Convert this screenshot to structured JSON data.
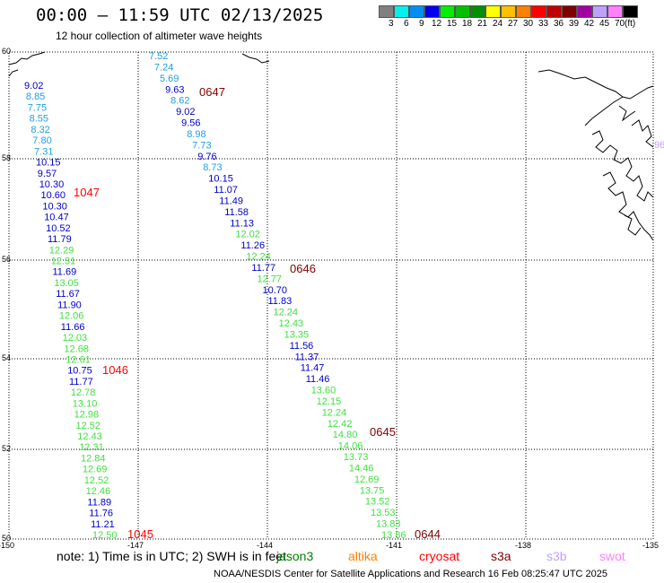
{
  "header": {
    "title": "00:00 — 11:59 UTC 02/13/2025",
    "subtitle": "12 hour collection of altimeter wave heights"
  },
  "scale": {
    "colors": [
      "#808080",
      "#00f0f0",
      "#0090f0",
      "#0000f0",
      "#00f000",
      "#00c000",
      "#009000",
      "#ffff00",
      "#ffc000",
      "#ff8000",
      "#ff0000",
      "#c00000",
      "#800000",
      "#a000a0",
      "#c0a0ff",
      "#ff80ff",
      "#000000"
    ],
    "labels": [
      "3",
      "6",
      "9",
      "12",
      "15",
      "18",
      "21",
      "24",
      "27",
      "30",
      "33",
      "36",
      "39",
      "42",
      "45",
      "70",
      "(ft)"
    ]
  },
  "axes": {
    "lat_labels": [
      "60",
      "58",
      "56",
      "54",
      "52",
      "50"
    ],
    "lon_labels": [
      "-150",
      "-147",
      "-144",
      "-141",
      "-138",
      "-135"
    ]
  },
  "tracks": [
    {
      "points": [
        [
          "9.02",
          "#0000c8"
        ],
        [
          "8.85",
          "#20a0e0"
        ],
        [
          "7.75",
          "#20a0e0"
        ],
        [
          "8.55",
          "#20a0e0"
        ],
        [
          "8.32",
          "#20a0e0"
        ],
        [
          "7.80",
          "#20a0e0"
        ],
        [
          "7.31",
          "#20a0e0"
        ],
        [
          "10.15",
          "#0000c8"
        ],
        [
          "9.57",
          "#0000c8"
        ],
        [
          "10.30",
          "#0000c8"
        ],
        [
          "10.60",
          "#0000c8"
        ],
        [
          "10.30",
          "#0000c8"
        ],
        [
          "10.47",
          "#0000c8"
        ],
        [
          "10.52",
          "#0000c8"
        ],
        [
          "11.79",
          "#0000c8"
        ],
        [
          "12.29",
          "#40e040"
        ],
        [
          "12.31",
          "#40e040"
        ],
        [
          "11.69",
          "#0000c8"
        ],
        [
          "13.05",
          "#40e040"
        ],
        [
          "11.67",
          "#0000c8"
        ],
        [
          "11.90",
          "#0000c8"
        ],
        [
          "12.06",
          "#40e040"
        ],
        [
          "11.66",
          "#0000c8"
        ],
        [
          "12.03",
          "#40e040"
        ],
        [
          "12.68",
          "#40e040"
        ],
        [
          "12.61",
          "#40e040"
        ],
        [
          "10.75",
          "#0000c8"
        ],
        [
          "11.77",
          "#0000c8"
        ],
        [
          "12.78",
          "#40e040"
        ],
        [
          "13.10",
          "#40e040"
        ],
        [
          "12.98",
          "#40e040"
        ],
        [
          "12.52",
          "#40e040"
        ],
        [
          "12.43",
          "#40e040"
        ],
        [
          "12.31",
          "#40e040"
        ],
        [
          "12.84",
          "#40e040"
        ],
        [
          "12.69",
          "#40e040"
        ],
        [
          "12.52",
          "#40e040"
        ],
        [
          "12.46",
          "#40e040"
        ],
        [
          "11.89",
          "#0000c8"
        ],
        [
          "11.76",
          "#0000c8"
        ],
        [
          "11.21",
          "#0000c8"
        ],
        [
          "12.50",
          "#40e040"
        ]
      ]
    },
    {
      "points": [
        [
          "7.52",
          "#20a0e0"
        ],
        [
          "7.24",
          "#20a0e0"
        ],
        [
          "5.69",
          "#20a0e0"
        ],
        [
          "9.63",
          "#0000c8"
        ],
        [
          "8.62",
          "#20a0e0"
        ],
        [
          "9.02",
          "#0000c8"
        ],
        [
          "9.56",
          "#0000c8"
        ],
        [
          "8.98",
          "#20a0e0"
        ],
        [
          "7.73",
          "#20a0e0"
        ],
        [
          "9.76",
          "#0000c8"
        ],
        [
          "8.73",
          "#20a0e0"
        ],
        [
          "10.15",
          "#0000c8"
        ],
        [
          "11.07",
          "#0000c8"
        ],
        [
          "11.49",
          "#0000c8"
        ],
        [
          "11.58",
          "#0000c8"
        ],
        [
          "11.13",
          "#0000c8"
        ],
        [
          "12.02",
          "#40e040"
        ],
        [
          "11.26",
          "#0000c8"
        ],
        [
          "12.24",
          "#40e040"
        ],
        [
          "11.77",
          "#0000c8"
        ],
        [
          "12.77",
          "#40e040"
        ],
        [
          "10.70",
          "#0000c8"
        ],
        [
          "11.83",
          "#0000c8"
        ],
        [
          "12.24",
          "#40e040"
        ],
        [
          "12.43",
          "#40e040"
        ],
        [
          "13.35",
          "#40e040"
        ],
        [
          "11.56",
          "#0000c8"
        ],
        [
          "11.37",
          "#0000c8"
        ],
        [
          "11.47",
          "#0000c8"
        ],
        [
          "11.46",
          "#0000c8"
        ],
        [
          "13.60",
          "#40e040"
        ],
        [
          "12.15",
          "#40e040"
        ],
        [
          "12.24",
          "#40e040"
        ],
        [
          "12.42",
          "#40e040"
        ],
        [
          "14.80",
          "#40e040"
        ],
        [
          "14.06",
          "#40e040"
        ],
        [
          "13.73",
          "#40e040"
        ],
        [
          "14.46",
          "#40e040"
        ],
        [
          "12.69",
          "#40e040"
        ],
        [
          "13.75",
          "#40e040"
        ],
        [
          "13.52",
          "#40e040"
        ],
        [
          "13.53",
          "#40e040"
        ],
        [
          "13.83",
          "#40e040"
        ],
        [
          "13.86",
          "#40e040"
        ]
      ]
    }
  ],
  "time_labels": [
    {
      "text": "0647",
      "color": "#800000"
    },
    {
      "text": "1047",
      "color": "#ff0000"
    },
    {
      "text": "0646",
      "color": "#800000"
    },
    {
      "text": "1046",
      "color": "#ff0000"
    },
    {
      "text": "0645",
      "color": "#800000"
    },
    {
      "text": "1045",
      "color": "#ff0000"
    },
    {
      "text": "0644",
      "color": "#800000"
    }
  ],
  "edge_glyph": {
    "text": "96",
    "color": "#c0a0ff"
  },
  "note": "note: 1) Time is in UTC; 2) SWH is in feet",
  "satellites": [
    {
      "name": "jason3",
      "color": "#008000"
    },
    {
      "name": "altika",
      "color": "#ff8000"
    },
    {
      "name": "cryosat",
      "color": "#ff0000"
    },
    {
      "name": "s3a",
      "color": "#800000"
    },
    {
      "name": "s3b",
      "color": "#c0a0ff"
    },
    {
      "name": "swot",
      "color": "#ff80ff"
    }
  ],
  "footer": "NOAA/NESDIS Center for Satellite Applications and Research   16 Feb 08:25:47 UTC 2025"
}
